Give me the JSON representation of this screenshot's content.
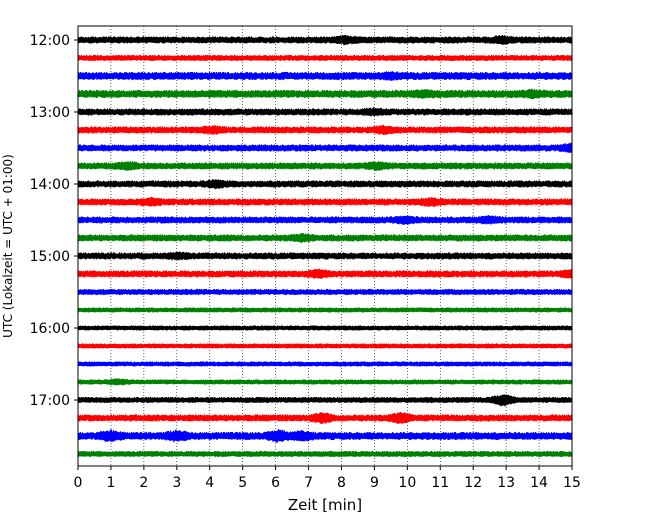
{
  "chart_data": {
    "type": "line",
    "xlabel": "Zeit  [min]",
    "ylabel": "UTC (Lokalzeit = UTC + 01:00)",
    "xlim": [
      0,
      15
    ],
    "x_ticks": [
      0,
      1,
      2,
      3,
      4,
      5,
      6,
      7,
      8,
      9,
      10,
      11,
      12,
      13,
      14,
      15
    ],
    "y_tick_labels": [
      "12:00",
      "13:00",
      "14:00",
      "15:00",
      "16:00",
      "17:00"
    ],
    "grid": "vertical dotted lines at each minute",
    "trace_interval_min": 15,
    "start_time": "12:00",
    "colors": [
      "#000000",
      "#ff0000",
      "#0000ff",
      "#008000"
    ],
    "traces": [
      {
        "start": "12:00",
        "color": "#000000",
        "amplitude": 3,
        "bursts": [
          {
            "x": 8.1,
            "a": 2
          },
          {
            "x": 12.9,
            "a": 2
          }
        ]
      },
      {
        "start": "12:15",
        "color": "#ff0000",
        "amplitude": 2.5,
        "bursts": []
      },
      {
        "start": "12:30",
        "color": "#0000ff",
        "amplitude": 3.5,
        "bursts": [
          {
            "x": 9.5,
            "a": 1.5
          }
        ]
      },
      {
        "start": "12:45",
        "color": "#008000",
        "amplitude": 3.5,
        "bursts": [
          {
            "x": 10.5,
            "a": 1.5
          },
          {
            "x": 13.8,
            "a": 1.5
          }
        ]
      },
      {
        "start": "13:00",
        "color": "#000000",
        "amplitude": 3,
        "bursts": [
          {
            "x": 9.0,
            "a": 1.5
          }
        ]
      },
      {
        "start": "13:15",
        "color": "#ff0000",
        "amplitude": 3,
        "bursts": [
          {
            "x": 4.1,
            "a": 2
          },
          {
            "x": 9.3,
            "a": 2
          }
        ]
      },
      {
        "start": "13:30",
        "color": "#0000ff",
        "amplitude": 3,
        "bursts": [
          {
            "x": 15.0,
            "a": 2.5
          }
        ]
      },
      {
        "start": "13:45",
        "color": "#008000",
        "amplitude": 3,
        "bursts": [
          {
            "x": 1.5,
            "a": 2
          },
          {
            "x": 9.1,
            "a": 2
          }
        ]
      },
      {
        "start": "14:00",
        "color": "#000000",
        "amplitude": 3,
        "bursts": [
          {
            "x": 4.2,
            "a": 2
          }
        ]
      },
      {
        "start": "14:15",
        "color": "#ff0000",
        "amplitude": 3,
        "bursts": [
          {
            "x": 2.2,
            "a": 2
          },
          {
            "x": 10.7,
            "a": 2
          }
        ]
      },
      {
        "start": "14:30",
        "color": "#0000ff",
        "amplitude": 3,
        "bursts": [
          {
            "x": 9.9,
            "a": 2
          },
          {
            "x": 12.5,
            "a": 2
          }
        ]
      },
      {
        "start": "14:45",
        "color": "#008000",
        "amplitude": 3,
        "bursts": [
          {
            "x": 6.8,
            "a": 2
          }
        ]
      },
      {
        "start": "15:00",
        "color": "#000000",
        "amplitude": 3,
        "bursts": [
          {
            "x": 3.0,
            "a": 1.5
          }
        ]
      },
      {
        "start": "15:15",
        "color": "#ff0000",
        "amplitude": 3,
        "bursts": [
          {
            "x": 7.3,
            "a": 2
          },
          {
            "x": 15.0,
            "a": 2
          }
        ]
      },
      {
        "start": "15:30",
        "color": "#0000ff",
        "amplitude": 2.5,
        "bursts": []
      },
      {
        "start": "15:45",
        "color": "#008000",
        "amplitude": 2,
        "bursts": []
      },
      {
        "start": "16:00",
        "color": "#000000",
        "amplitude": 2,
        "bursts": []
      },
      {
        "start": "16:15",
        "color": "#ff0000",
        "amplitude": 2,
        "bursts": []
      },
      {
        "start": "16:30",
        "color": "#0000ff",
        "amplitude": 2,
        "bursts": []
      },
      {
        "start": "16:45",
        "color": "#008000",
        "amplitude": 2,
        "bursts": [
          {
            "x": 1.2,
            "a": 1.5
          }
        ]
      },
      {
        "start": "17:00",
        "color": "#000000",
        "amplitude": 2.5,
        "bursts": [
          {
            "x": 12.9,
            "a": 4
          }
        ]
      },
      {
        "start": "17:15",
        "color": "#ff0000",
        "amplitude": 3,
        "bursts": [
          {
            "x": 7.4,
            "a": 3
          },
          {
            "x": 9.8,
            "a": 3.5
          }
        ]
      },
      {
        "start": "17:30",
        "color": "#0000ff",
        "amplitude": 3.5,
        "bursts": [
          {
            "x": 1.0,
            "a": 3
          },
          {
            "x": 3.0,
            "a": 3
          },
          {
            "x": 6.1,
            "a": 3.5
          },
          {
            "x": 6.8,
            "a": 2.5
          }
        ]
      },
      {
        "start": "17:45",
        "color": "#008000",
        "amplitude": 2.5,
        "bursts": []
      }
    ]
  }
}
